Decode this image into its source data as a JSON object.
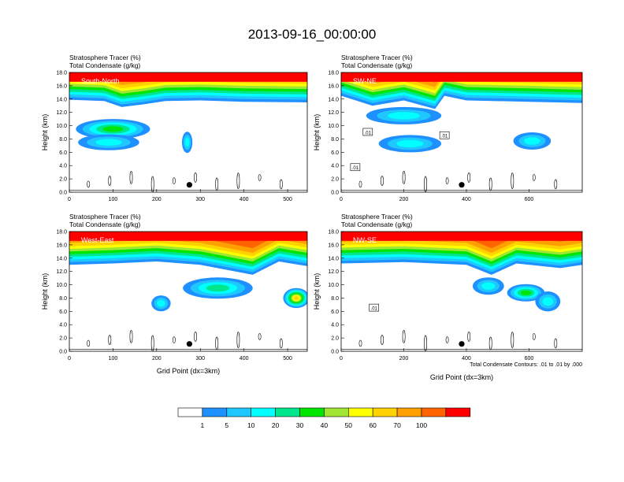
{
  "title": "2013-09-16_00:00:00",
  "chart_data": {
    "type": "heatmap",
    "colorbar": {
      "levels": [
        "1",
        "5",
        "10",
        "20",
        "30",
        "40",
        "50",
        "60",
        "70",
        "100"
      ],
      "colors": [
        "#ffffff",
        "#1e90ff",
        "#1ec8ff",
        "#00ffff",
        "#00e68c",
        "#00e600",
        "#a0e632",
        "#ffff00",
        "#ffd200",
        "#ffa000",
        "#ff6400",
        "#ff0000"
      ]
    },
    "panels": [
      {
        "name": "South-North",
        "label1": "Stratosphere Tracer   (%)",
        "label2": "Total Condensate   (g/kg)",
        "xlim": [
          0,
          545
        ],
        "xticks": [
          "0",
          "100",
          "200",
          "300",
          "400",
          "500"
        ],
        "xtick_values": [
          0,
          100,
          200,
          300,
          400,
          500
        ],
        "ylim": [
          0,
          18
        ],
        "yticks": [
          "0.0",
          "2.0",
          "4.0",
          "6.0",
          "8.0",
          "10.0",
          "12.0",
          "14.0",
          "16.0",
          "18.0"
        ],
        "ylabel": "Height (km)",
        "xlabel": "",
        "marker_x": 275,
        "marker_y": 1.1,
        "contour_labels": [],
        "tropopause": [
          [
            0,
            13.9
          ],
          [
            80,
            13.7
          ],
          [
            120,
            12.8
          ],
          [
            170,
            13.2
          ],
          [
            220,
            13.7
          ],
          [
            300,
            13.8
          ],
          [
            400,
            13.6
          ],
          [
            545,
            13.5
          ]
        ],
        "plumes": [
          {
            "x": 100,
            "y": 9.5,
            "rx": 85,
            "ry": 1.5,
            "v": 30
          },
          {
            "x": 90,
            "y": 7.5,
            "rx": 70,
            "ry": 1.2,
            "v": 10
          },
          {
            "x": 270,
            "y": 7.5,
            "rx": 12,
            "ry": 1.6,
            "v": 10
          }
        ]
      },
      {
        "name": "SW-NE",
        "label1": "Stratosphere Tracer   (%)",
        "label2": "Total Condensate   (g/kg)",
        "xlim": [
          0,
          770
        ],
        "xticks": [
          "0",
          "200",
          "400",
          "600"
        ],
        "xtick_values": [
          0,
          200,
          400,
          600
        ],
        "ylim": [
          0,
          18
        ],
        "yticks": [
          "0.0",
          "2.0",
          "4.0",
          "6.0",
          "8.0",
          "10.0",
          "12.0",
          "14.0",
          "16.0",
          "18.0"
        ],
        "ylabel": "Height (km)",
        "xlabel": "",
        "marker_x": 385,
        "marker_y": 1.1,
        "contour_labels": [
          {
            "text": ".01",
            "x": 85,
            "y": 9.0
          },
          {
            "text": ".01",
            "x": 330,
            "y": 8.5
          },
          {
            "text": ".01",
            "x": 45,
            "y": 3.7
          }
        ],
        "tropopause": [
          [
            0,
            14.5
          ],
          [
            100,
            13.0
          ],
          [
            200,
            13.8
          ],
          [
            300,
            12.5
          ],
          [
            330,
            14.5
          ],
          [
            400,
            13.8
          ],
          [
            600,
            13.6
          ],
          [
            770,
            13.4
          ]
        ],
        "plumes": [
          {
            "x": 220,
            "y": 7.3,
            "rx": 100,
            "ry": 1.3,
            "v": 10
          },
          {
            "x": 610,
            "y": 7.7,
            "rx": 60,
            "ry": 1.3,
            "v": 10
          },
          {
            "x": 200,
            "y": 11.5,
            "rx": 120,
            "ry": 1.3,
            "v": 10
          }
        ]
      },
      {
        "name": "West-East",
        "label1": "Stratosphere Tracer   (%)",
        "label2": "Total Condensate   (g/kg)",
        "xlim": [
          0,
          545
        ],
        "xticks": [
          "0",
          "100",
          "200",
          "300",
          "400",
          "500"
        ],
        "xtick_values": [
          0,
          100,
          200,
          300,
          400,
          500
        ],
        "ylim": [
          0,
          18
        ],
        "yticks": [
          "0.0",
          "2.0",
          "4.0",
          "6.0",
          "8.0",
          "10.0",
          "12.0",
          "14.0",
          "16.0",
          "18.0"
        ],
        "ylabel": "Height (km)",
        "xlabel": "Grid Point (dx=3km)",
        "marker_x": 275,
        "marker_y": 1.1,
        "contour_labels": [],
        "tropopause": [
          [
            0,
            13.0
          ],
          [
            100,
            13.2
          ],
          [
            200,
            13.5
          ],
          [
            300,
            13.0
          ],
          [
            420,
            11.5
          ],
          [
            480,
            13.5
          ],
          [
            545,
            12.8
          ]
        ],
        "plumes": [
          {
            "x": 340,
            "y": 9.5,
            "rx": 80,
            "ry": 1.6,
            "v": 20
          },
          {
            "x": 210,
            "y": 7.2,
            "rx": 22,
            "ry": 1.2,
            "v": 10
          },
          {
            "x": 520,
            "y": 8.0,
            "rx": 30,
            "ry": 1.5,
            "v": 60
          }
        ]
      },
      {
        "name": "NW-SE",
        "label1": "Stratosphere Tracer   (%)",
        "label2": "Total Condensate   (g/kg)",
        "xlim": [
          0,
          770
        ],
        "xticks": [
          "0",
          "200",
          "400",
          "600"
        ],
        "xtick_values": [
          0,
          200,
          400,
          600
        ],
        "ylim": [
          0,
          18
        ],
        "yticks": [
          "0.0",
          "2.0",
          "4.0",
          "6.0",
          "8.0",
          "10.0",
          "12.0",
          "14.0",
          "16.0",
          "18.0"
        ],
        "ylabel": "Height (km)",
        "xlabel": "Grid Point (dx=3km)",
        "marker_x": 385,
        "marker_y": 1.1,
        "contour_labels": [
          {
            "text": ".01",
            "x": 105,
            "y": 6.5
          }
        ],
        "note": "Total Condensate Contours: .01 to .01 by .000",
        "tropopause": [
          [
            0,
            13.2
          ],
          [
            200,
            13.4
          ],
          [
            400,
            13.0
          ],
          [
            480,
            11.5
          ],
          [
            560,
            13.2
          ],
          [
            700,
            12.5
          ],
          [
            770,
            13.0
          ]
        ],
        "plumes": [
          {
            "x": 470,
            "y": 9.8,
            "rx": 50,
            "ry": 1.3,
            "v": 10
          },
          {
            "x": 590,
            "y": 8.8,
            "rx": 60,
            "ry": 1.3,
            "v": 30
          },
          {
            "x": 660,
            "y": 7.5,
            "rx": 40,
            "ry": 1.5,
            "v": 10
          }
        ]
      }
    ]
  }
}
